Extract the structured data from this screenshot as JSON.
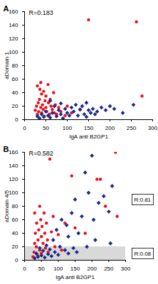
{
  "chart_data": [
    {
      "type": "scatter",
      "panel": "A",
      "annotation": "R=0.183",
      "xlabel": "IgA anti B2GP1",
      "ylabel": "aDomain 1",
      "xlim": [
        0,
        300
      ],
      "xticks": [
        0,
        50,
        100,
        150,
        200,
        250,
        300
      ],
      "ylim": [
        0,
        160
      ],
      "yticks": [
        0,
        20,
        40,
        60,
        80,
        100,
        120,
        140,
        160
      ],
      "grid": false,
      "series": [
        {
          "color": "#e3141c",
          "marker": "circle",
          "x": [
            25,
            28,
            30,
            32,
            33,
            35,
            36,
            38,
            40,
            40,
            42,
            44,
            45,
            46,
            48,
            50,
            50,
            52,
            55,
            56,
            58,
            60,
            62,
            65,
            68,
            70,
            72,
            75,
            80,
            85,
            95,
            100,
            110,
            130,
            150,
            262,
            275,
            30,
            38
          ],
          "values": [
            14,
            20,
            8,
            25,
            12,
            30,
            45,
            18,
            10,
            38,
            22,
            15,
            42,
            5,
            28,
            35,
            18,
            12,
            52,
            25,
            8,
            30,
            20,
            15,
            40,
            10,
            22,
            8,
            18,
            12,
            6,
            20,
            10,
            15,
            148,
            145,
            35,
            50,
            55
          ]
        },
        {
          "color": "#1c2a8a",
          "marker": "diamond",
          "x": [
            30,
            35,
            40,
            45,
            50,
            55,
            60,
            65,
            70,
            75,
            80,
            85,
            90,
            95,
            100,
            105,
            110,
            115,
            120,
            125,
            130,
            135,
            140,
            145,
            150,
            155,
            160,
            165,
            170,
            180,
            190,
            200,
            210,
            230,
            255,
            145,
            60,
            85
          ],
          "values": [
            5,
            2,
            8,
            4,
            12,
            6,
            3,
            10,
            20,
            5,
            14,
            8,
            2,
            16,
            10,
            6,
            18,
            12,
            22,
            6,
            15,
            20,
            8,
            4,
            14,
            10,
            16,
            8,
            12,
            18,
            14,
            20,
            16,
            10,
            22,
            25,
            28,
            24
          ]
        }
      ]
    },
    {
      "type": "scatter",
      "panel": "B",
      "annotation": "R=0.582",
      "xlabel": "IgA anti B2GP1",
      "ylabel": "aDomain 4/5",
      "xlim": [
        0,
        300
      ],
      "xticks": [
        0,
        50,
        100,
        150,
        200,
        250,
        300
      ],
      "ylim": [
        0,
        160
      ],
      "yticks": [
        0,
        20,
        40,
        60,
        80,
        100,
        120,
        140,
        160
      ],
      "grid": false,
      "shaded_band": {
        "y": [
          0,
          20
        ],
        "color": "#d9d9d9"
      },
      "band_annotations": {
        "above": "R:0.81",
        "below": "R:0.08"
      },
      "series": [
        {
          "color": "#e3141c",
          "marker": "circle",
          "x": [
            25,
            28,
            30,
            32,
            35,
            36,
            38,
            40,
            42,
            45,
            48,
            50,
            50,
            52,
            55,
            58,
            60,
            62,
            65,
            68,
            70,
            75,
            80,
            85,
            90,
            100,
            110,
            120,
            140,
            150,
            180,
            215,
            225,
            240,
            270,
            275,
            30,
            45
          ],
          "values": [
            5,
            12,
            25,
            40,
            20,
            55,
            8,
            30,
            45,
            15,
            60,
            35,
            10,
            50,
            25,
            70,
            40,
            18,
            55,
            30,
            12,
            150,
            42,
            65,
            20,
            38,
            15,
            55,
            125,
            48,
            40,
            120,
            120,
            80,
            160,
            65,
            70,
            80
          ]
        },
        {
          "color": "#1c2a8a",
          "marker": "diamond",
          "x": [
            30,
            35,
            40,
            45,
            50,
            55,
            60,
            65,
            70,
            75,
            80,
            85,
            90,
            95,
            100,
            105,
            110,
            120,
            125,
            130,
            140,
            145,
            150,
            155,
            160,
            170,
            180,
            185,
            190,
            200,
            205,
            210,
            220,
            235,
            250,
            255,
            260,
            130
          ],
          "values": [
            3,
            10,
            5,
            18,
            7,
            14,
            4,
            22,
            9,
            16,
            6,
            30,
            12,
            45,
            8,
            20,
            60,
            15,
            52,
            10,
            70,
            18,
            90,
            12,
            40,
            65,
            130,
            20,
            100,
            155,
            60,
            30,
            85,
            95,
            72,
            25,
            110,
            35
          ]
        }
      ]
    }
  ]
}
